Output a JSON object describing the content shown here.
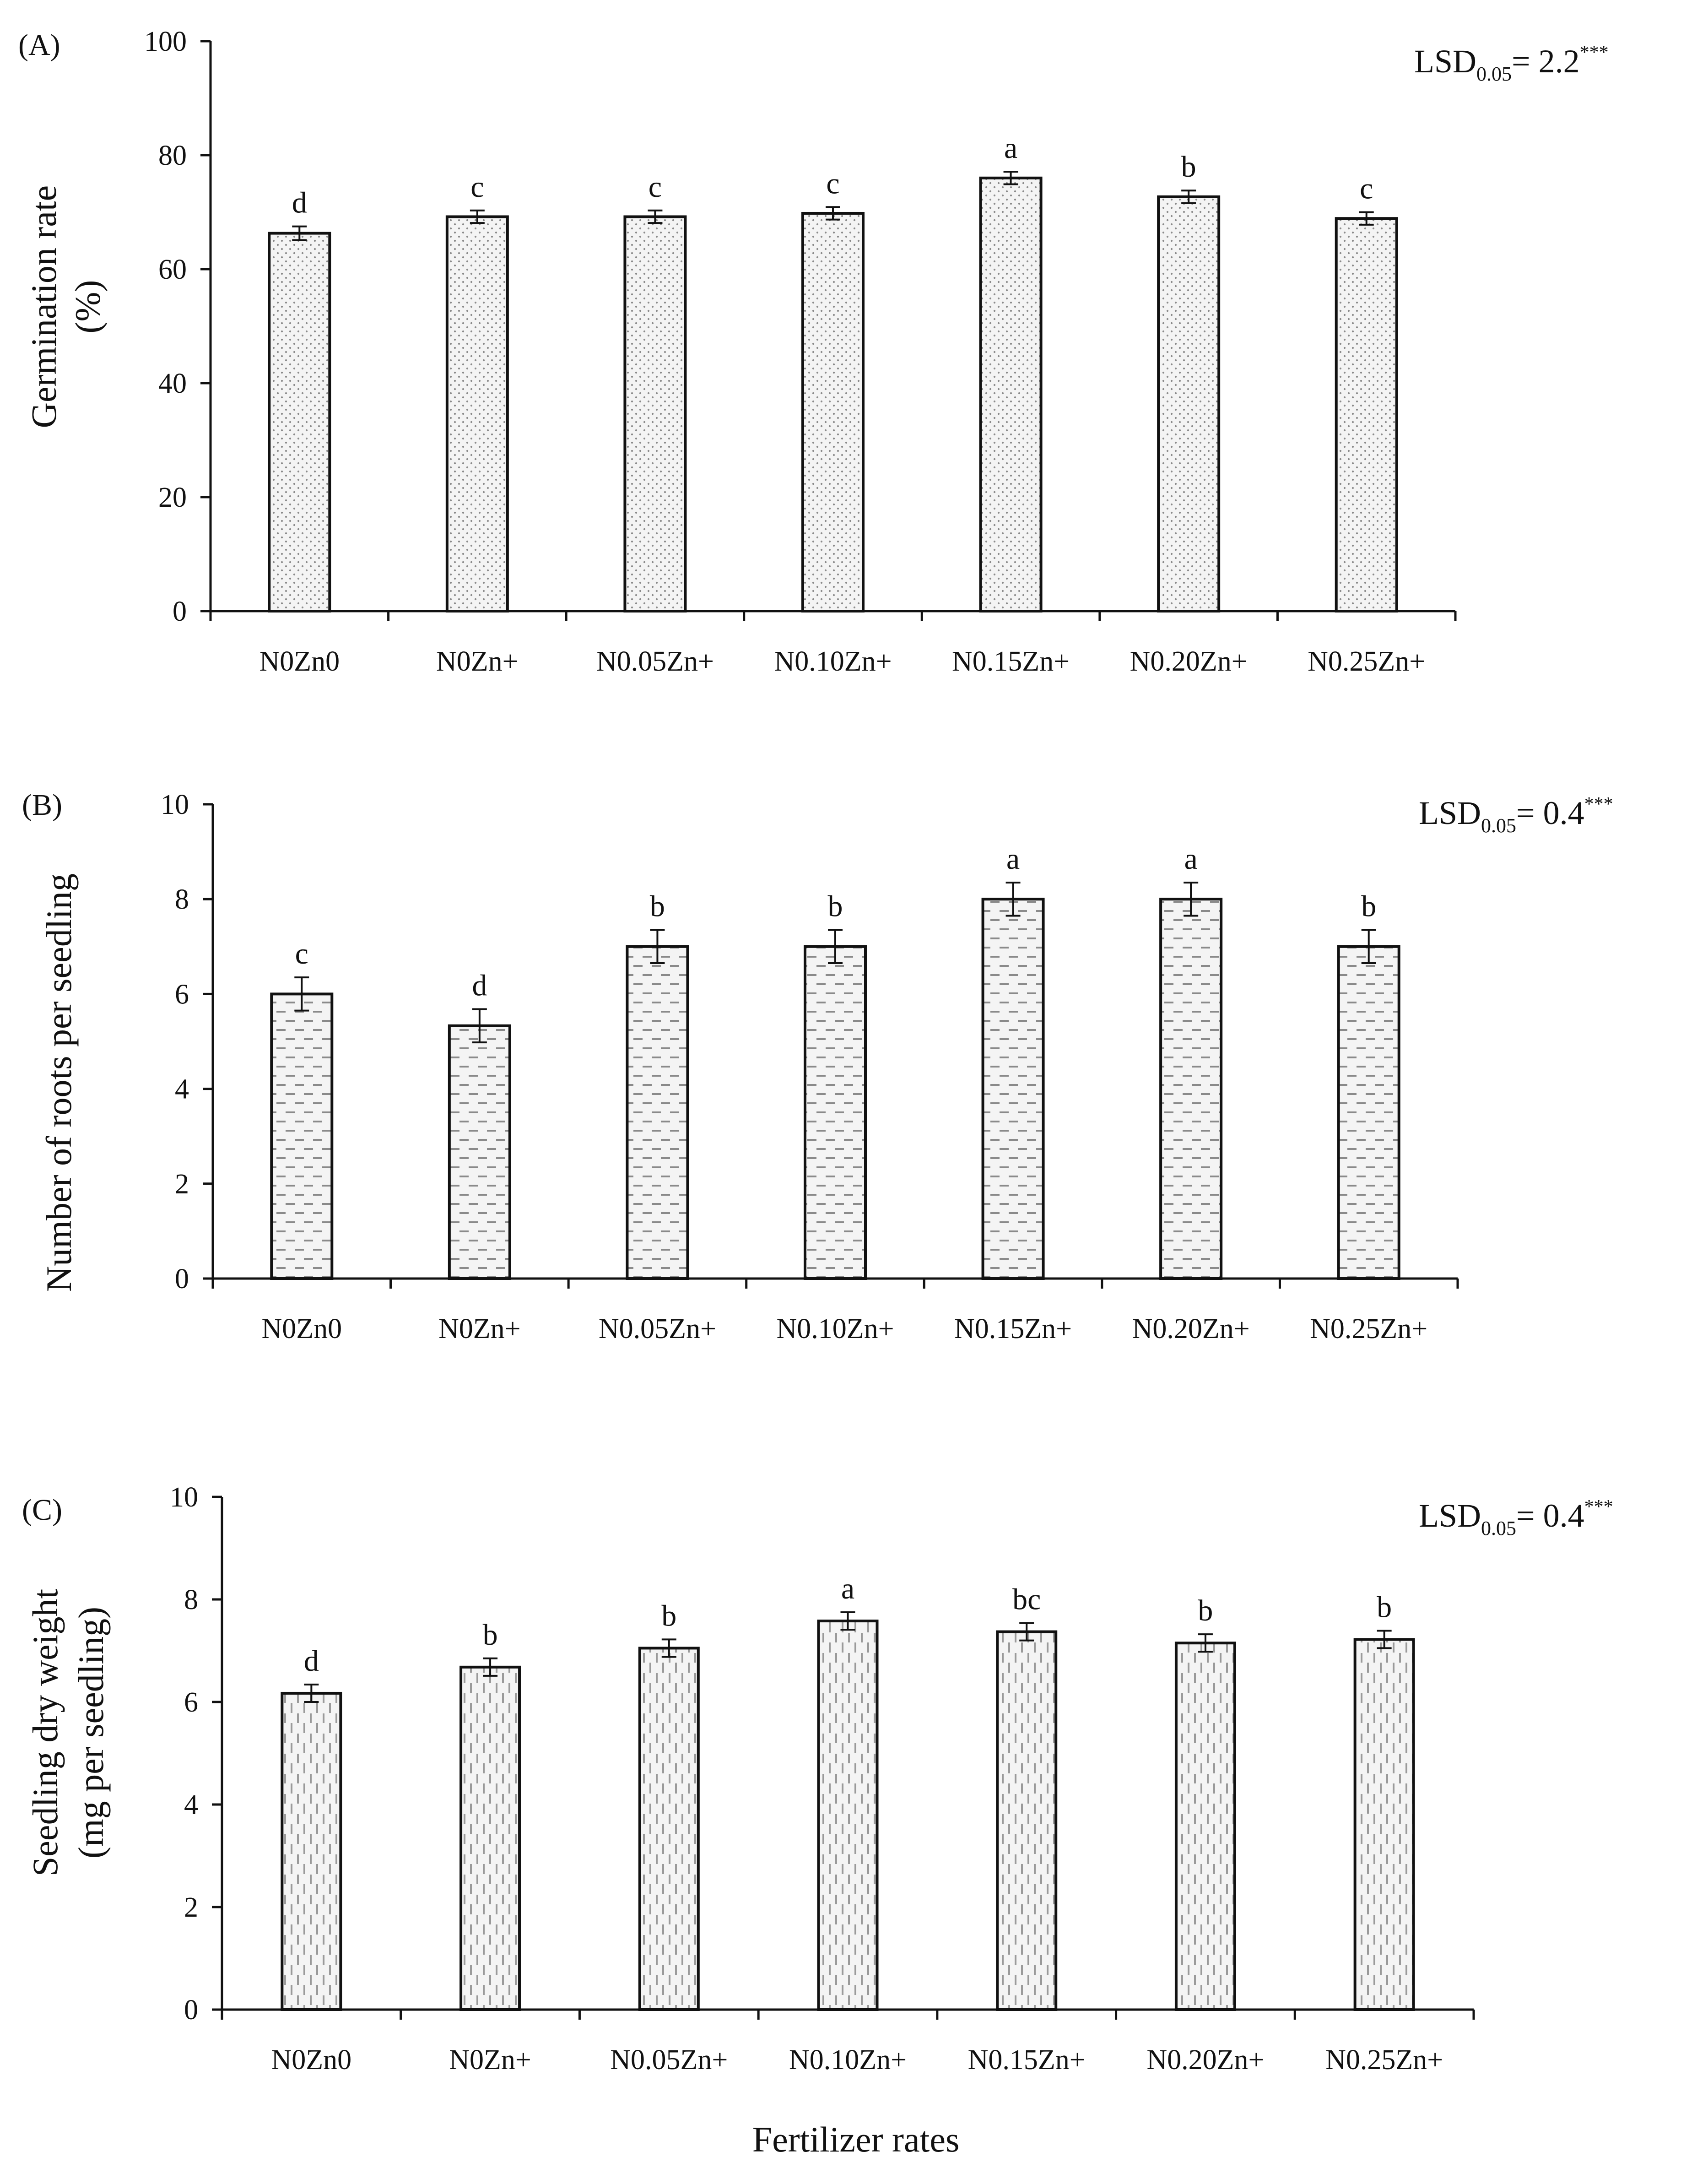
{
  "figure": {
    "x_axis_title": "Fertilizer rates",
    "colors": {
      "ink": "#111111",
      "bar_fill": "#f4f4f4",
      "pattern": "#8a8a8a"
    }
  },
  "chart_data": [
    {
      "panel": "(A)",
      "type": "bar",
      "pattern": "dots",
      "categories": [
        "N0Zn0",
        "N0Zn+",
        "N0.05Zn+",
        "N0.10Zn+",
        "N0.15Zn+",
        "N0.20Zn+",
        "N0.25Zn+"
      ],
      "values": [
        66.3,
        69.2,
        69.2,
        69.8,
        76.0,
        72.7,
        68.9
      ],
      "errors": [
        1.2,
        1.1,
        1.1,
        1.1,
        1.1,
        1.1,
        1.1
      ],
      "letters": [
        "d",
        "c",
        "c",
        "c",
        "a",
        "b",
        "c"
      ],
      "ylabel": [
        "Germination rate",
        "(%)"
      ],
      "ylim": [
        0,
        100
      ],
      "yticks": [
        "0",
        "20",
        "40",
        "60",
        "80",
        "100"
      ],
      "lsd": {
        "prefix": "LSD",
        "sub": "0.05",
        "value": "= 2.2",
        "sup": "***"
      }
    },
    {
      "panel": "(B)",
      "type": "bar",
      "pattern": "dashes-horizontal",
      "categories": [
        "N0Zn0",
        "N0Zn+",
        "N0.05Zn+",
        "N0.10Zn+",
        "N0.15Zn+",
        "N0.20Zn+",
        "N0.25Zn+"
      ],
      "values": [
        6.0,
        5.33,
        7.0,
        7.0,
        8.0,
        8.0,
        7.0
      ],
      "errors": [
        0.35,
        0.35,
        0.35,
        0.35,
        0.35,
        0.35,
        0.35
      ],
      "letters": [
        "c",
        "d",
        "b",
        "b",
        "a",
        "a",
        "b"
      ],
      "ylabel": [
        "Number of roots per seedling"
      ],
      "ylim": [
        0,
        10
      ],
      "yticks": [
        "0",
        "2",
        "4",
        "6",
        "8",
        "10"
      ],
      "lsd": {
        "prefix": "LSD",
        "sub": "0.05",
        "value": "= 0.4",
        "sup": "***"
      }
    },
    {
      "panel": "(C)",
      "type": "bar",
      "pattern": "dashes-vertical",
      "categories": [
        "N0Zn0",
        "N0Zn+",
        "N0.05Zn+",
        "N0.10Zn+",
        "N0.15Zn+",
        "N0.20Zn+",
        "N0.25Zn+"
      ],
      "values": [
        6.17,
        6.68,
        7.05,
        7.58,
        7.37,
        7.15,
        7.22
      ],
      "errors": [
        0.17,
        0.17,
        0.17,
        0.17,
        0.17,
        0.17,
        0.17
      ],
      "letters": [
        "d",
        "b",
        "b",
        "a",
        "bc",
        "b",
        "b"
      ],
      "ylabel": [
        "Seedling dry weight",
        "(mg per seedling)"
      ],
      "ylim": [
        0,
        10
      ],
      "yticks": [
        "0",
        "2",
        "4",
        "6",
        "8",
        "10"
      ],
      "lsd": {
        "prefix": "LSD",
        "sub": "0.05",
        "value": "= 0.4",
        "sup": "***"
      }
    }
  ]
}
